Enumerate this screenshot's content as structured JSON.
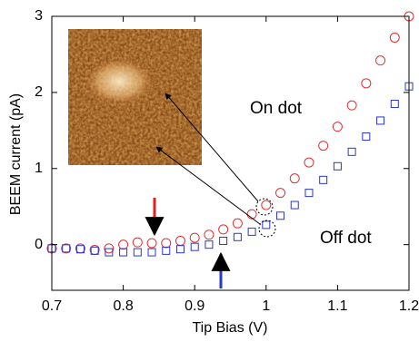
{
  "chart_data": {
    "type": "scatter",
    "x_label": "Tip Bias (V)",
    "y_label": "BEEM current  (pA)",
    "x": [
      0.7,
      0.72,
      0.74,
      0.76,
      0.78,
      0.8,
      0.82,
      0.84,
      0.86,
      0.88,
      0.9,
      0.92,
      0.94,
      0.96,
      0.98,
      1.0,
      1.02,
      1.04,
      1.06,
      1.08,
      1.1,
      1.12,
      1.14,
      1.16,
      1.18,
      1.2
    ],
    "series": [
      {
        "name": "On dot",
        "color": "#e03030",
        "marker": "circle",
        "values": [
          -0.05,
          -0.05,
          -0.05,
          -0.07,
          -0.05,
          0.0,
          0.03,
          0.02,
          0.02,
          0.05,
          0.09,
          0.13,
          0.2,
          0.28,
          0.4,
          0.52,
          0.68,
          0.87,
          1.08,
          1.3,
          1.55,
          1.83,
          2.12,
          2.42,
          2.72,
          3.0
        ]
      },
      {
        "name": "Off dot",
        "color": "#2a36d0",
        "marker": "square",
        "values": [
          -0.05,
          -0.05,
          -0.06,
          -0.08,
          -0.1,
          -0.1,
          -0.1,
          -0.1,
          -0.08,
          -0.06,
          -0.03,
          0.0,
          0.05,
          0.1,
          0.17,
          0.26,
          0.38,
          0.52,
          0.68,
          0.85,
          1.03,
          1.22,
          1.42,
          1.63,
          1.85,
          2.08
        ]
      }
    ],
    "xlim": [
      0.7,
      1.2
    ],
    "xticks": [
      0.7,
      0.8,
      0.9,
      1.0,
      1.1,
      1.2
    ],
    "ylim": [
      -0.6,
      3
    ],
    "yticks": [
      0,
      1,
      2,
      3
    ]
  }
}
